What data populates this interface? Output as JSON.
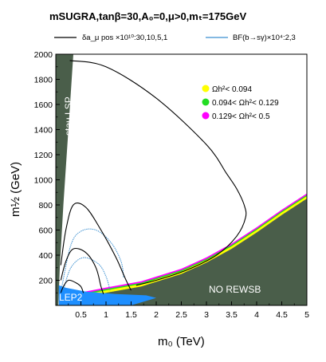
{
  "chart_data": {
    "type": "contour",
    "title": "mSUGRA,tanβ=30,A₀=0,μ>0,mₜ=175GeV",
    "xlabel": "m₀ (TeV)",
    "ylabel": "m½ (GeV)",
    "xlim": [
      0,
      5
    ],
    "ylim": [
      0,
      2000
    ],
    "x_ticks": [
      "0.5",
      "1",
      "1.5",
      "2",
      "2.5",
      "3",
      "3.5",
      "4",
      "4.5",
      "5"
    ],
    "y_ticks": [
      "200",
      "400",
      "600",
      "800",
      "1000",
      "1200",
      "1400",
      "1600",
      "1800",
      "2000"
    ],
    "line_legend": [
      {
        "label": "δa_μ pos ×10¹⁰:30,10,5,1",
        "color": "#000000"
      },
      {
        "label": "BF(b→sγ)×10⁴:2,3",
        "color": "#3a8fd0"
      }
    ],
    "density_legend": [
      {
        "label": "Ωh²< 0.094",
        "color": "#ffff00"
      },
      {
        "label": "0.094< Ωh²< 0.129",
        "color": "#22dd22"
      },
      {
        "label": "0.129< Ωh²< 0.5",
        "color": "#ff00ff"
      }
    ],
    "regions": [
      {
        "label": "stau LSP",
        "color": "#4a5e4a"
      },
      {
        "label": "NO REWSB",
        "color": "#4a5e4a"
      },
      {
        "label": "LEP2",
        "color": "#1e8fff"
      }
    ],
    "amu_contours": {
      "30": [
        [
          0.1,
          100
        ],
        [
          0.15,
          150
        ],
        [
          0.25,
          200
        ],
        [
          0.4,
          180
        ],
        [
          0.5,
          150
        ],
        [
          0.55,
          100
        ]
      ],
      "10": [
        [
          0.1,
          200
        ],
        [
          0.2,
          350
        ],
        [
          0.35,
          450
        ],
        [
          0.6,
          420
        ],
        [
          0.8,
          300
        ],
        [
          0.9,
          150
        ],
        [
          0.95,
          90
        ]
      ],
      "5": [
        [
          0.1,
          320
        ],
        [
          0.2,
          600
        ],
        [
          0.35,
          800
        ],
        [
          0.6,
          780
        ],
        [
          0.9,
          600
        ],
        [
          1.2,
          380
        ],
        [
          1.4,
          200
        ],
        [
          1.5,
          120
        ]
      ],
      "1": [
        [
          0.28,
          1950
        ],
        [
          1.0,
          1900
        ],
        [
          2.0,
          1650
        ],
        [
          3.0,
          1280
        ],
        [
          3.4,
          1050
        ],
        [
          3.6,
          930
        ],
        [
          3.75,
          800
        ],
        [
          3.78,
          700
        ],
        [
          3.6,
          550
        ],
        [
          3.2,
          400
        ],
        [
          2.6,
          280
        ],
        [
          2.0,
          200
        ],
        [
          1.6,
          160
        ]
      ]
    },
    "bsg_contours": {
      "3": [
        [
          0.12,
          150
        ],
        [
          0.3,
          480
        ],
        [
          0.5,
          590
        ],
        [
          0.8,
          600
        ],
        [
          1.1,
          500
        ],
        [
          1.3,
          350
        ],
        [
          1.35,
          220
        ]
      ],
      "2": [
        [
          0.15,
          120
        ],
        [
          0.3,
          300
        ],
        [
          0.55,
          380
        ],
        [
          0.85,
          330
        ],
        [
          1.0,
          230
        ],
        [
          1.08,
          120
        ]
      ]
    },
    "ewsb_boundary": [
      [
        0.35,
        50
      ],
      [
        1.0,
        100
      ],
      [
        1.7,
        150
      ],
      [
        2.5,
        250
      ],
      [
        3.0,
        340
      ],
      [
        3.5,
        450
      ],
      [
        4.0,
        580
      ],
      [
        4.5,
        720
      ],
      [
        5.0,
        850
      ]
    ],
    "stau_boundary": [
      [
        0.05,
        0
      ],
      [
        0.08,
        300
      ],
      [
        0.15,
        800
      ],
      [
        0.25,
        1400
      ],
      [
        0.35,
        2000
      ]
    ]
  }
}
